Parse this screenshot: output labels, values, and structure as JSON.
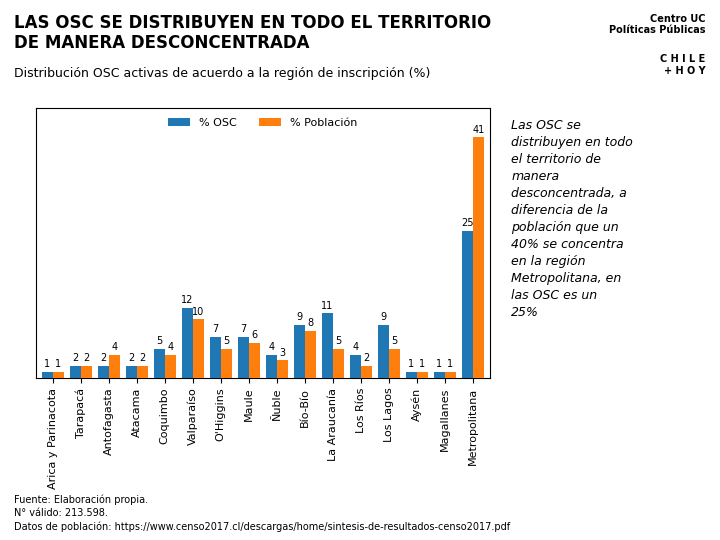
{
  "chart_data": {
    "type": "bar",
    "title": "LAS OSC SE DISTRIBUYEN EN TODO EL TERRITORIO\nDE MANERA DESCONCENTRADA",
    "subtitle": "Distribución OSC activas de acuerdo a la región de inscripción (%)",
    "categories": [
      "Arica y Parinacota",
      "Tarapacá",
      "Antofagasta",
      "Atacama",
      "Coquimbo",
      "Valparaíso",
      "O'Higgins",
      "Maule",
      "Ñuble",
      "Bío-Bío",
      "La Araucanía",
      "Los Ríos",
      "Los Lagos",
      "Aysén",
      "Magallanes",
      "Metropolitana"
    ],
    "series": [
      {
        "name": "% OSC",
        "values": [
          1,
          2,
          2,
          2,
          5,
          12,
          7,
          7,
          4,
          9,
          11,
          4,
          9,
          1,
          1,
          25
        ]
      },
      {
        "name": "% Población",
        "values": [
          1,
          2,
          4,
          2,
          4,
          10,
          5,
          6,
          3,
          8,
          5,
          2,
          5,
          1,
          1,
          41
        ]
      }
    ],
    "ylim": [
      0,
      46
    ],
    "tick_labels": "x",
    "data_labels": true,
    "legend": "upper center",
    "annotations": [
      "Centro UC\nPolíticas Públicas",
      "C H I L E\n+ H O Y",
      "Las OSC se\ndistribuyen en todo\nel territorio de\nmanera\ndesconcentrada, a\ndiferencia de la\npoblación que un\n40% se concentra\nen la región\nMetropolitana, en\nlas OSC es un\n25%",
      "Fuente: Elaboración propia.\nN° válido: 213.598.\nDatos de población: https://www.censo2017.cl/descargas/home/sintesis-de-resultados-censo2017.pdf"
    ]
  }
}
